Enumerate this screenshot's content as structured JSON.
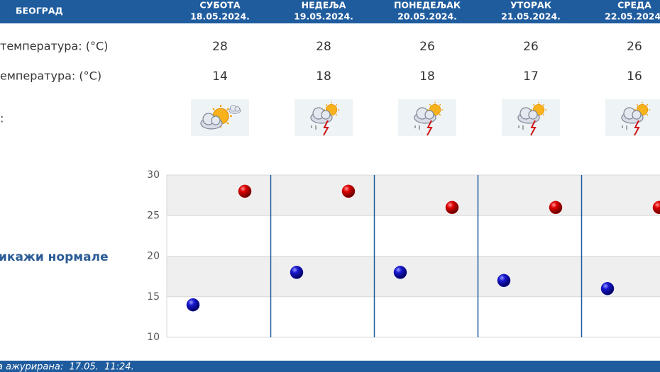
{
  "header": {
    "city": "БЕОГРАД",
    "days": [
      {
        "name": "СУБОТА",
        "date": "18.05.2024."
      },
      {
        "name": "НЕДЕЉА",
        "date": "19.05.2024."
      },
      {
        "name": "ПОНЕДЕЉАК",
        "date": "20.05.2024."
      },
      {
        "name": "УТОРАК",
        "date": "21.05.2024."
      },
      {
        "name": "СРЕДА",
        "date": "22.05.2024."
      }
    ]
  },
  "table": {
    "rows": [
      {
        "label": "температура: (°C)",
        "values": [
          28,
          28,
          26,
          26,
          26
        ]
      },
      {
        "label": "емпература: (°C)",
        "values": [
          14,
          18,
          18,
          17,
          16
        ]
      },
      {
        "label": ":"
      }
    ]
  },
  "chart": {
    "ylim": [
      10,
      30
    ],
    "yticks": [
      10,
      15,
      20,
      25,
      30
    ],
    "colors": [
      "#d00000",
      "#1414c8"
    ]
  },
  "toggle": "икажи нормале",
  "footer": "а ажурирана:  17.05.  11:24."
}
